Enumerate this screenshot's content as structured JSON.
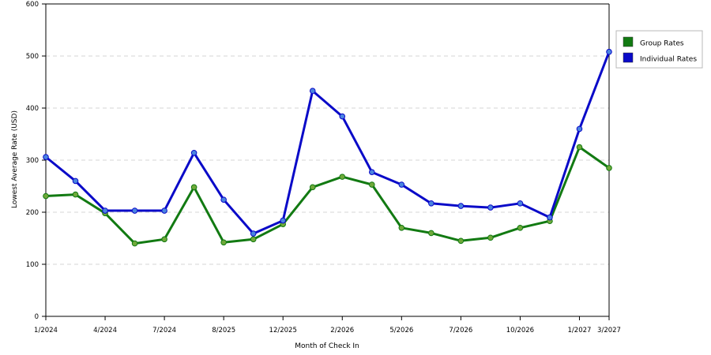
{
  "colors": {
    "group": "#127a12",
    "individual": "#0a0ac8",
    "group_marker": "#6fa93a",
    "individual_marker": "#4a84e0",
    "grid": "#d4d4d4"
  },
  "chart_data": {
    "type": "line",
    "title": "",
    "xlabel": "Month of Check In",
    "ylabel": "Lowest Average Rate (USD)",
    "ylim": [
      0,
      600
    ],
    "yticks": [
      0,
      100,
      200,
      300,
      400,
      500,
      600
    ],
    "grid": "horizontal dashed",
    "legend_position": "top-right",
    "x_tick_labels": [
      {
        "index": 0,
        "label": "1/2024"
      },
      {
        "index": 2,
        "label": "4/2024"
      },
      {
        "index": 4,
        "label": "7/2024"
      },
      {
        "index": 6,
        "label": "8/2025"
      },
      {
        "index": 8,
        "label": "12/2025"
      },
      {
        "index": 10,
        "label": "2/2026"
      },
      {
        "index": 12,
        "label": "5/2026"
      },
      {
        "index": 14,
        "label": "7/2026"
      },
      {
        "index": 16,
        "label": "10/2026"
      },
      {
        "index": 18,
        "label": "1/2027"
      },
      {
        "index": 19,
        "label": "3/2027"
      }
    ],
    "point_count": 20,
    "series": [
      {
        "name": "Group Rates",
        "color_key": "group",
        "values": [
          231,
          234,
          198,
          140,
          148,
          248,
          142,
          148,
          177,
          248,
          268,
          253,
          170,
          160,
          145,
          151,
          170,
          183,
          325,
          285
        ]
      },
      {
        "name": "Individual Rates",
        "color_key": "individual",
        "values": [
          306,
          260,
          203,
          203,
          203,
          314,
          224,
          159,
          184,
          433,
          384,
          277,
          253,
          217,
          212,
          209,
          217,
          190,
          360,
          508
        ]
      }
    ]
  }
}
